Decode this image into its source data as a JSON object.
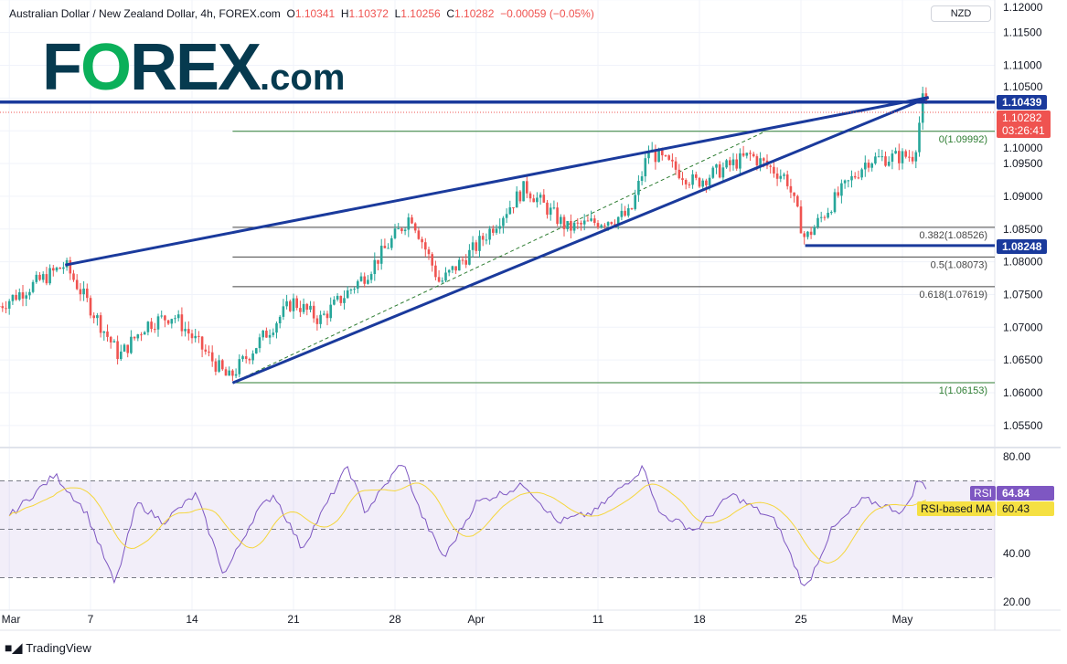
{
  "header": {
    "symbol": "Australian Dollar / New Zealand Dollar, 4h, FOREX.com",
    "open_label": "O",
    "open": "1.10341",
    "high_label": "H",
    "high": "1.10372",
    "low_label": "L",
    "low": "1.10256",
    "close_label": "C",
    "close": "1.10282",
    "change": "−0.00059 (−0.05%)"
  },
  "logo": {
    "text": "FOREX.com"
  },
  "currency": "NZD",
  "price_tags": {
    "resistance": "1.10439",
    "last": "1.10282",
    "countdown": "03:26:41",
    "support": "1.08248"
  },
  "rsi_tags": {
    "rsi_label": "RSI",
    "rsi_value": "64.84",
    "ma_label": "RSI-based MA",
    "ma_value": "60.43"
  },
  "footer": {
    "brand": "TradingView"
  },
  "colors": {
    "up": "#26a69a",
    "down": "#ef5350",
    "trendline": "#1a3a9c",
    "fib": "#2e7d32",
    "rsi": "#7e57c2",
    "rsi_ma": "#f5d63c"
  },
  "chart_data": [
    {
      "type": "candlestick",
      "title": "Australian Dollar / New Zealand Dollar, 4h, FOREX.com",
      "ylim": [
        1.0525,
        1.12
      ],
      "y_ticks": [
        "1.12000",
        "1.11500",
        "1.11000",
        "1.10500",
        "1.10000",
        "1.09500",
        "1.09000",
        "1.08500",
        "1.08000",
        "1.07500",
        "1.07000",
        "1.06500",
        "1.06000",
        "1.05500"
      ],
      "x_ticks": [
        "Mar",
        "7",
        "14",
        "21",
        "28",
        "Apr",
        "11",
        "18",
        "25",
        "May"
      ],
      "price_path": [
        [
          "Feb 28 12",
          "1.07325"
        ],
        [
          "Mar 3 18",
          "1.07953"
        ],
        [
          "Mar 8 10",
          "1.06558"
        ],
        [
          "Mar 9 18",
          "1.07046"
        ],
        [
          "Mar 11 02",
          "1.07185"
        ],
        [
          "Mar 15 19",
          "1.06209"
        ],
        [
          "Mar 18 23",
          "1.07395"
        ],
        [
          "Mar 22 07",
          "1.07116"
        ],
        [
          "Mar 24 14",
          "1.07813"
        ],
        [
          "Mar 28 19",
          "1.08720"
        ],
        [
          "Mar 30 05",
          "1.07674"
        ],
        [
          "Apr 1 00",
          "1.08232"
        ],
        [
          "Apr 5 10",
          "1.09138"
        ],
        [
          "Apr 7 12",
          "1.08510"
        ],
        [
          "Apr 12 14",
          "1.08720"
        ],
        [
          "Apr 13 12",
          "1.09696"
        ],
        [
          "Apr 15 19",
          "1.09208"
        ],
        [
          "Apr 20 12",
          "1.09626"
        ],
        [
          "Apr 22 07",
          "1.09278"
        ],
        [
          "Apr 25 05",
          "1.08343"
        ],
        [
          "Apr 26 19",
          "1.08999"
        ],
        [
          "Apr 28 07",
          "1.09557"
        ],
        [
          "May 2 14",
          "1.09626"
        ],
        [
          "May 3 00",
          "1.10463"
        ],
        [
          "May 3 07",
          "1.10282"
        ]
      ],
      "horizontal_levels": [
        {
          "price": 1.10439,
          "label": "1.10439"
        },
        {
          "price": 1.08248,
          "label": "1.08248"
        }
      ],
      "trendlines": [
        {
          "from": [
            "Mar 3 18",
            1.0795
          ],
          "to": [
            "May 3 07",
            1.1051
          ]
        },
        {
          "from": [
            "Mar 16 00",
            1.0615
          ],
          "to": [
            "May 3 07",
            1.1051
          ]
        }
      ],
      "fibonacci": [
        {
          "level": "0",
          "price": "1.09992"
        },
        {
          "level": "0.382",
          "price": "1.08526"
        },
        {
          "level": "0.5",
          "price": "1.08073"
        },
        {
          "level": "0.618",
          "price": "1.07619"
        },
        {
          "level": "1",
          "price": "1.06153"
        }
      ],
      "last_price": 1.10282
    },
    {
      "type": "line",
      "title": "RSI",
      "ylim": [
        18,
        82
      ],
      "y_ticks": [
        "80.00",
        "40.00",
        "20.00"
      ],
      "bands": [
        70,
        50,
        30
      ],
      "series": [
        {
          "name": "RSI",
          "points": [
            [
              "Mar 1 00",
              55.5
            ],
            [
              "Mar 3 06",
              72.5
            ],
            [
              "Mar 4 19",
              57
            ],
            [
              "Mar 8 05",
              27
            ],
            [
              "Mar 9 07",
              61
            ],
            [
              "Mar 10 14",
              53
            ],
            [
              "Mar 14 05",
              64.5
            ],
            [
              "Mar 15 14",
              31
            ],
            [
              "Mar 17 04",
              57
            ],
            [
              "Mar 18 01",
              64.5
            ],
            [
              "Mar 21 10",
              42
            ],
            [
              "Mar 23 16",
              76
            ],
            [
              "Mar 24 13",
              57
            ],
            [
              "Mar 28 09",
              78
            ],
            [
              "Mar 29 06",
              57
            ],
            [
              "Mar 30 10",
              38
            ],
            [
              "Apr 1 00",
              61
            ],
            [
              "Apr 5 10",
              68.5
            ],
            [
              "Apr 7 00",
              53
            ],
            [
              "Apr 8 19",
              57
            ],
            [
              "Apr 13 07",
              76
            ],
            [
              "Apr 13 23",
              57
            ],
            [
              "Apr 15 19",
              49.5
            ],
            [
              "Apr 19 14",
              64.5
            ],
            [
              "Apr 21 19",
              53
            ],
            [
              "Apr 25 05",
              25
            ],
            [
              "Apr 26 12",
              49.5
            ],
            [
              "Apr 28 02",
              62.5
            ],
            [
              "May 2 02",
              57
            ],
            [
              "May 2 19",
              71
            ],
            [
              "May 3 07",
              64.84
            ]
          ]
        },
        {
          "name": "RSI-based MA",
          "last": 60.43
        }
      ]
    }
  ]
}
